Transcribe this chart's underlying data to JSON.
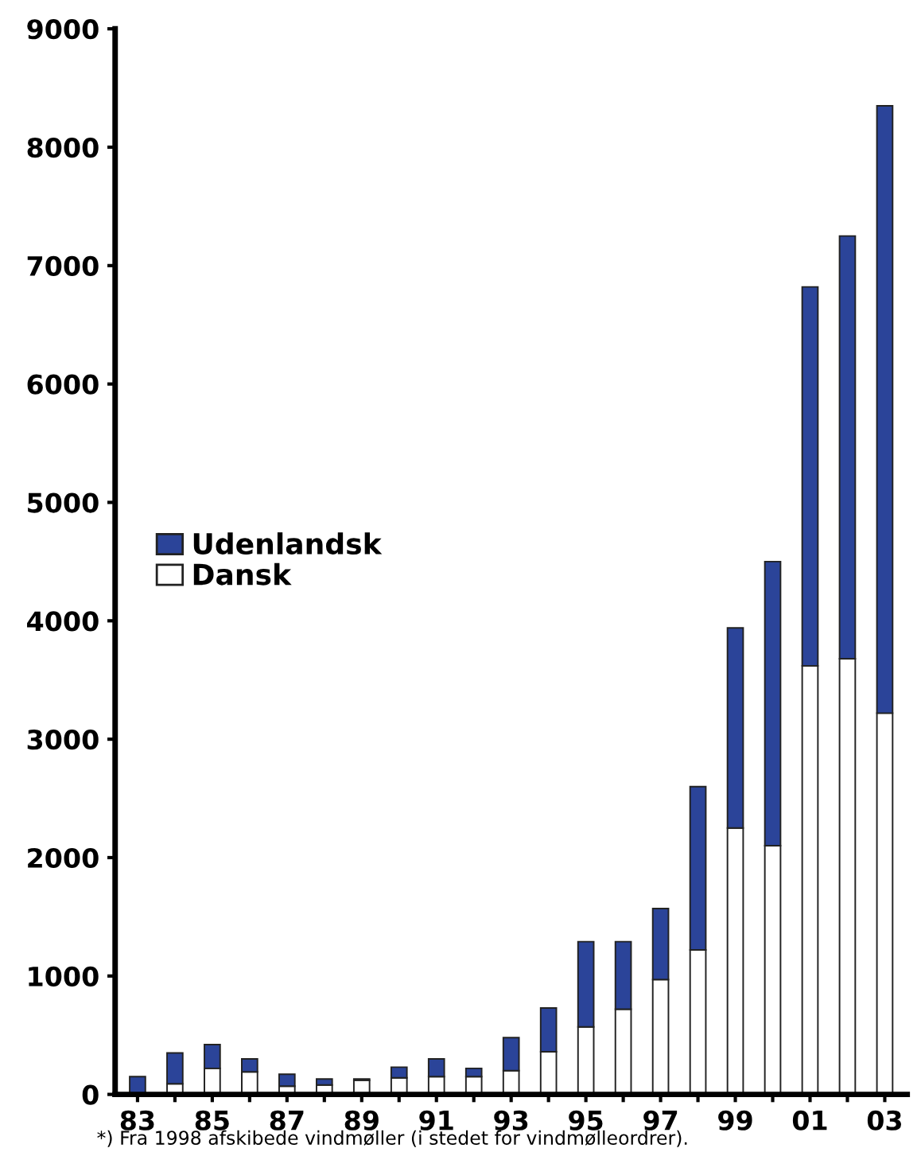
{
  "chart_data": {
    "type": "bar",
    "stacked": true,
    "categories": [
      "83",
      null,
      "85",
      null,
      "87",
      null,
      "89",
      null,
      "91",
      null,
      "93",
      null,
      "95",
      null,
      "97",
      null,
      "99",
      null,
      "01",
      null,
      "03"
    ],
    "series": [
      {
        "name": "Dansk",
        "color": "#ffffff",
        "values": [
          null,
          90,
          220,
          190,
          70,
          80,
          120,
          140,
          150,
          150,
          200,
          360,
          570,
          720,
          970,
          1220,
          2250,
          2100,
          3620,
          3680,
          3220
        ]
      },
      {
        "name": "Udenlandsk",
        "color": "#2b4499",
        "values": [
          150,
          260,
          200,
          110,
          100,
          50,
          10,
          90,
          150,
          70,
          280,
          370,
          720,
          570,
          600,
          1380,
          1690,
          2400,
          3200,
          3570,
          5130
        ]
      }
    ],
    "ylim": [
      0,
      9000
    ],
    "yticks": [
      0,
      1000,
      2000,
      3000,
      4000,
      5000,
      6000,
      7000,
      8000,
      9000
    ],
    "grid": false,
    "legend": "center left",
    "annotations": [
      "*) Fra 1998 afskibede vindmøller (i stedet for vindmølleordrer)."
    ]
  }
}
